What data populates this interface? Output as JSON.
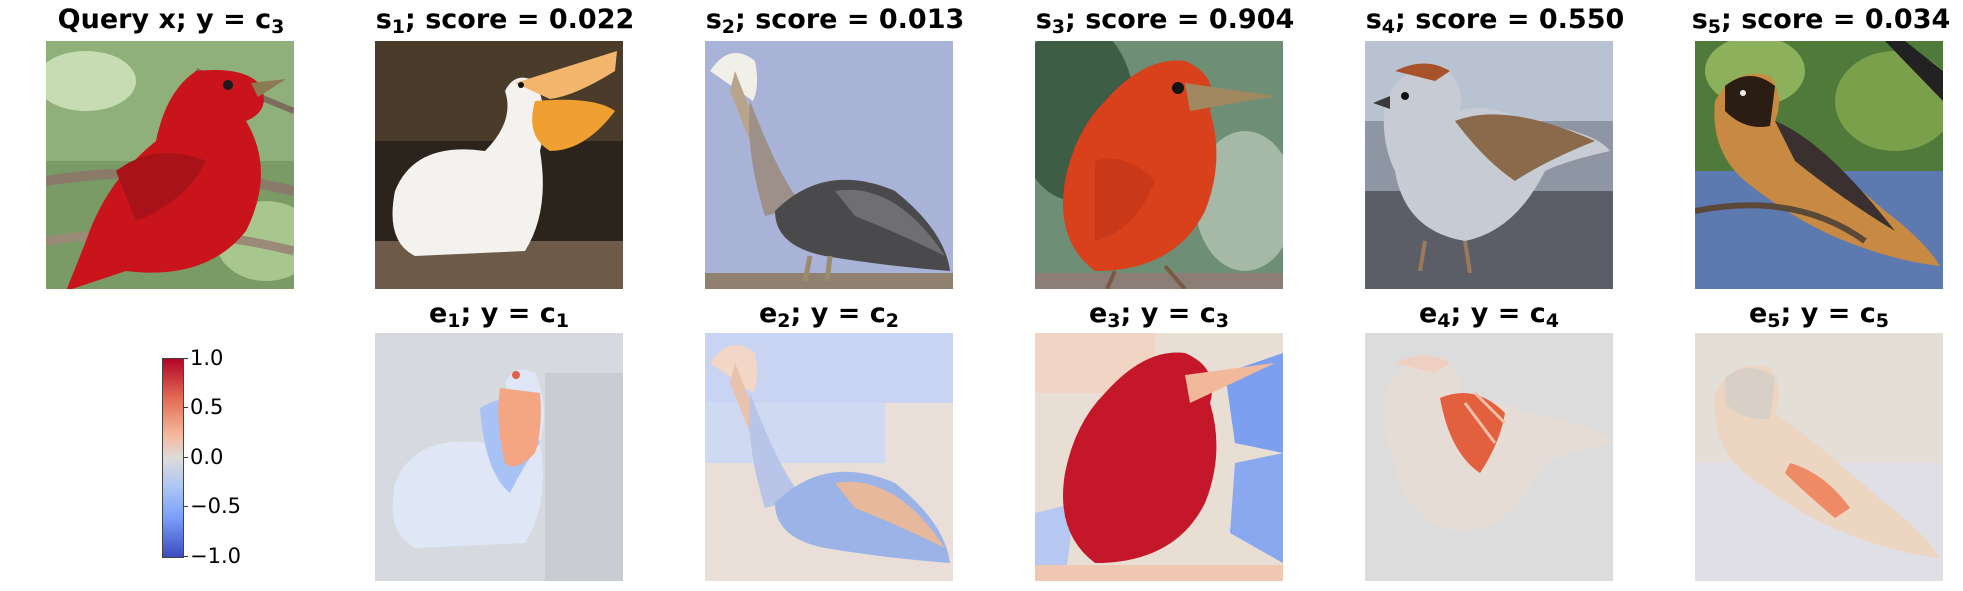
{
  "top_row": [
    {
      "prefix": "Query x; y = c",
      "sub": "3",
      "suffix": "",
      "image": "red-tanager-query"
    },
    {
      "prefix": "s",
      "sub": "1",
      "suffix": "; score = 0.022",
      "image": "white-pelican"
    },
    {
      "prefix": "s",
      "sub": "2",
      "suffix": "; score = 0.013",
      "image": "brown-pelican"
    },
    {
      "prefix": "s",
      "sub": "3",
      "suffix": "; score = 0.904",
      "image": "summer-tanager"
    },
    {
      "prefix": "s",
      "sub": "4",
      "suffix": "; score = 0.550",
      "image": "sparrow"
    },
    {
      "prefix": "s",
      "sub": "5",
      "suffix": "; score = 0.034",
      "image": "oriole"
    }
  ],
  "bottom_row": [
    {
      "e_sub": "1",
      "c_sub": "1"
    },
    {
      "e_sub": "2",
      "c_sub": "2"
    },
    {
      "e_sub": "3",
      "c_sub": "3"
    },
    {
      "e_sub": "4",
      "c_sub": "4"
    },
    {
      "e_sub": "5",
      "c_sub": "5"
    }
  ],
  "bottom_title": {
    "mid": "; y = c"
  },
  "colorbar": {
    "ticks": [
      "1.0",
      "0.5",
      "0.0",
      "−0.5",
      "−1.0"
    ],
    "colors": {
      "max": "#b40426",
      "mid": "#dddcdc",
      "min": "#3b4cc0"
    }
  }
}
